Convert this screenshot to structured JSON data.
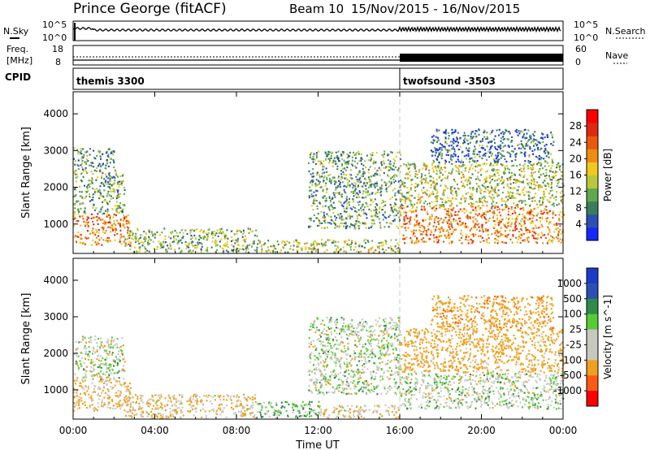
{
  "header": {
    "station": "Prince George (fitACF)",
    "beam": "Beam 10",
    "dates": "15/Nov/2015 - 16/Nov/2015"
  },
  "noise_panel": {
    "left_label": "N.Sky",
    "left_ticks": [
      "10^5",
      "10^0"
    ],
    "right_label": "N.Search",
    "right_ticks": [
      "10^5",
      "10^0"
    ]
  },
  "freq_panel": {
    "left_label_1": "Freq.",
    "left_label_2": "[MHz]",
    "left_ticks": [
      "18",
      "8"
    ],
    "right_label": "Nave",
    "right_ticks": [
      "60",
      "0"
    ]
  },
  "cpid": {
    "label": "CPID",
    "modes": [
      {
        "name": "themis 3300",
        "start_hour": 0,
        "end_hour": 16
      },
      {
        "name": "twofsound -3503",
        "start_hour": 16,
        "end_hour": 24
      }
    ]
  },
  "colors": {
    "power": [
      "#1428ff",
      "#2c4fb4",
      "#3a7d5c",
      "#61a84f",
      "#b8c83a",
      "#f0c81e",
      "#f08c14",
      "#e85a0a",
      "#e02810",
      "#ff0000"
    ],
    "velocity": [
      "#ff0000",
      "#ff5a14",
      "#f0a01e",
      "#c8c8c0",
      "#c8c8c0",
      "#55cc33",
      "#2f8a4a",
      "#2c4fb4",
      "#1a3cc8"
    ]
  },
  "chart_data": [
    {
      "type": "heatmap",
      "title": "",
      "xlabel": "Time UT",
      "ylabel": "Slant Range [km]",
      "xlim": [
        0,
        24
      ],
      "ylim": [
        200,
        4600
      ],
      "x_tick_labels": [
        "00:00",
        "04:00",
        "08:00",
        "12:00",
        "16:00",
        "20:00",
        "00:00"
      ],
      "y_tick_labels": [
        "1000",
        "2000",
        "3000",
        "4000"
      ],
      "y_ticks": [
        1000,
        2000,
        3000,
        4000
      ],
      "colorbar": {
        "label": "Power [dB]",
        "range": [
          0,
          32
        ],
        "tick_labels": [
          "4",
          "8",
          "12",
          "16",
          "20",
          "24",
          "28"
        ],
        "ticks": [
          4,
          8,
          12,
          16,
          20,
          24,
          28
        ]
      },
      "regions": [
        {
          "t0": 0.0,
          "t1": 2.8,
          "r0": 450,
          "r1": 1300,
          "v": 22
        },
        {
          "t0": 0.0,
          "t1": 2.5,
          "r0": 1300,
          "r1": 2500,
          "v": 11
        },
        {
          "t0": 0.0,
          "t1": 2.0,
          "r0": 2500,
          "r1": 3100,
          "v": 9
        },
        {
          "t0": 2.5,
          "t1": 9.0,
          "r0": 250,
          "r1": 900,
          "v": 12
        },
        {
          "t0": 9.0,
          "t1": 16.0,
          "r0": 250,
          "r1": 600,
          "v": 14
        },
        {
          "t0": 11.5,
          "t1": 16.0,
          "r0": 900,
          "r1": 3000,
          "v": 10
        },
        {
          "t0": 16.0,
          "t1": 24.0,
          "r0": 500,
          "r1": 1500,
          "v": 22
        },
        {
          "t0": 16.0,
          "t1": 24.0,
          "r0": 1500,
          "r1": 2700,
          "v": 14
        },
        {
          "t0": 17.5,
          "t1": 23.5,
          "r0": 2700,
          "r1": 3600,
          "v": 7
        }
      ]
    },
    {
      "type": "heatmap",
      "title": "",
      "xlabel": "Time UT",
      "ylabel": "Slant Range [km]",
      "xlim": [
        0,
        24
      ],
      "ylim": [
        200,
        4600
      ],
      "x_tick_labels": [
        "00:00",
        "04:00",
        "08:00",
        "12:00",
        "16:00",
        "20:00",
        "00:00"
      ],
      "y_tick_labels": [
        "1000",
        "2000",
        "3000",
        "4000"
      ],
      "y_ticks": [
        1000,
        2000,
        3000,
        4000
      ],
      "colorbar": {
        "label": "Velocity [m s^-1]",
        "tick_labels": [
          "1000",
          "500",
          "100",
          "25",
          "-25",
          "-100",
          "-500",
          "-1000"
        ]
      },
      "regions": [
        {
          "t0": 0.0,
          "t1": 2.8,
          "r0": 450,
          "r1": 1300,
          "v": -150
        },
        {
          "t0": 0.0,
          "t1": 2.5,
          "r0": 1300,
          "r1": 2500,
          "v": 0
        },
        {
          "t0": 2.5,
          "t1": 9.0,
          "r0": 250,
          "r1": 900,
          "v": -100
        },
        {
          "t0": 9.0,
          "t1": 12.0,
          "r0": 250,
          "r1": 700,
          "v": 80
        },
        {
          "t0": 12.0,
          "t1": 16.0,
          "r0": 250,
          "r1": 600,
          "v": -90
        },
        {
          "t0": 11.5,
          "t1": 16.0,
          "r0": 900,
          "r1": 3000,
          "v": 0
        },
        {
          "t0": 16.0,
          "t1": 24.0,
          "r0": 500,
          "r1": 1500,
          "v": 0
        },
        {
          "t0": 16.0,
          "t1": 24.0,
          "r0": 1500,
          "r1": 2700,
          "v": -200
        },
        {
          "t0": 17.5,
          "t1": 23.5,
          "r0": 2700,
          "r1": 3600,
          "v": -400
        }
      ]
    }
  ]
}
